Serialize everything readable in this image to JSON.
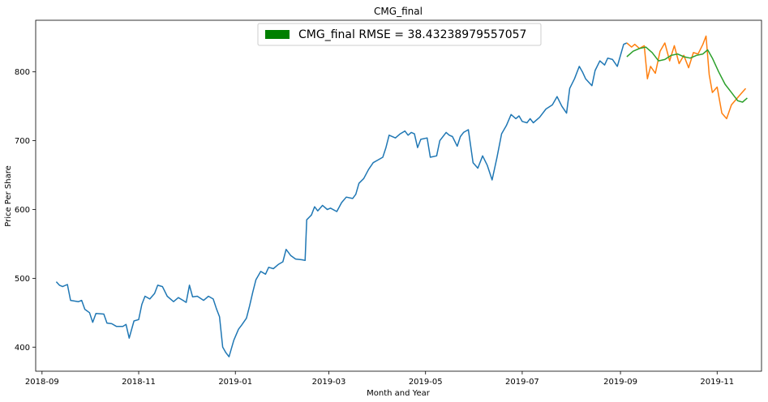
{
  "chart_data": {
    "type": "line",
    "title": "CMG_final",
    "xlabel": "Month and Year",
    "ylabel": "Price Per Share",
    "xlim": [
      "2018-08-28",
      "2019-11-29"
    ],
    "ylim": [
      365,
      875
    ],
    "x_ticks": [
      "2018-09-01",
      "2018-11-01",
      "2019-01-01",
      "2019-03-01",
      "2019-05-01",
      "2019-07-01",
      "2019-09-01",
      "2019-11-01"
    ],
    "x_tick_labels": [
      "2018-09",
      "2018-11",
      "2019-01",
      "2019-03",
      "2019-05",
      "2019-07",
      "2019-09",
      "2019-11"
    ],
    "y_ticks": [
      400,
      500,
      600,
      700,
      800
    ],
    "grid": false,
    "legend": {
      "placement": "top-center",
      "entries": [
        {
          "label": "CMG_final RMSE = 38.43238979557057",
          "color": "#008000"
        }
      ]
    },
    "series": [
      {
        "color": "#1f77b4",
        "points": [
          [
            "2018-09-10",
            495
          ],
          [
            "2018-09-12",
            490
          ],
          [
            "2018-09-14",
            488
          ],
          [
            "2018-09-17",
            491
          ],
          [
            "2018-09-19",
            468
          ],
          [
            "2018-09-24",
            466
          ],
          [
            "2018-09-26",
            468
          ],
          [
            "2018-09-28",
            455
          ],
          [
            "2018-10-01",
            450
          ],
          [
            "2018-10-03",
            436
          ],
          [
            "2018-10-05",
            449
          ],
          [
            "2018-10-10",
            448
          ],
          [
            "2018-10-12",
            435
          ],
          [
            "2018-10-15",
            434
          ],
          [
            "2018-10-18",
            430
          ],
          [
            "2018-10-22",
            430
          ],
          [
            "2018-10-24",
            433
          ],
          [
            "2018-10-26",
            413
          ],
          [
            "2018-10-29",
            438
          ],
          [
            "2018-11-01",
            440
          ],
          [
            "2018-11-03",
            462
          ],
          [
            "2018-11-05",
            474
          ],
          [
            "2018-11-08",
            470
          ],
          [
            "2018-11-11",
            478
          ],
          [
            "2018-11-13",
            490
          ],
          [
            "2018-11-16",
            488
          ],
          [
            "2018-11-19",
            474
          ],
          [
            "2018-11-23",
            466
          ],
          [
            "2018-11-26",
            472
          ],
          [
            "2018-11-29",
            468
          ],
          [
            "2018-12-01",
            465
          ],
          [
            "2018-12-03",
            490
          ],
          [
            "2018-12-05",
            473
          ],
          [
            "2018-12-08",
            474
          ],
          [
            "2018-12-12",
            468
          ],
          [
            "2018-12-15",
            474
          ],
          [
            "2018-12-18",
            470
          ],
          [
            "2018-12-20",
            456
          ],
          [
            "2018-12-22",
            444
          ],
          [
            "2018-12-24",
            400
          ],
          [
            "2018-12-26",
            392
          ],
          [
            "2018-12-28",
            386
          ],
          [
            "2018-12-31",
            410
          ],
          [
            "2019-01-03",
            426
          ],
          [
            "2019-01-05",
            432
          ],
          [
            "2019-01-08",
            442
          ],
          [
            "2019-01-10",
            460
          ],
          [
            "2019-01-12",
            480
          ],
          [
            "2019-01-14",
            498
          ],
          [
            "2019-01-17",
            510
          ],
          [
            "2019-01-20",
            506
          ],
          [
            "2019-01-22",
            516
          ],
          [
            "2019-01-25",
            514
          ],
          [
            "2019-01-28",
            520
          ],
          [
            "2019-01-31",
            524
          ],
          [
            "2019-02-02",
            542
          ],
          [
            "2019-02-05",
            533
          ],
          [
            "2019-02-08",
            528
          ],
          [
            "2019-02-12",
            527
          ],
          [
            "2019-02-14",
            526
          ],
          [
            "2019-02-15",
            585
          ],
          [
            "2019-02-18",
            592
          ],
          [
            "2019-02-20",
            604
          ],
          [
            "2019-02-22",
            598
          ],
          [
            "2019-02-25",
            606
          ],
          [
            "2019-02-28",
            600
          ],
          [
            "2019-03-02",
            602
          ],
          [
            "2019-03-06",
            597
          ],
          [
            "2019-03-09",
            610
          ],
          [
            "2019-03-12",
            618
          ],
          [
            "2019-03-16",
            616
          ],
          [
            "2019-03-18",
            622
          ],
          [
            "2019-03-20",
            638
          ],
          [
            "2019-03-23",
            645
          ],
          [
            "2019-03-26",
            658
          ],
          [
            "2019-03-29",
            668
          ],
          [
            "2019-04-01",
            672
          ],
          [
            "2019-04-04",
            676
          ],
          [
            "2019-04-06",
            690
          ],
          [
            "2019-04-08",
            708
          ],
          [
            "2019-04-12",
            704
          ],
          [
            "2019-04-15",
            710
          ],
          [
            "2019-04-18",
            714
          ],
          [
            "2019-04-20",
            708
          ],
          [
            "2019-04-22",
            712
          ],
          [
            "2019-04-24",
            710
          ],
          [
            "2019-04-26",
            690
          ],
          [
            "2019-04-28",
            702
          ],
          [
            "2019-05-02",
            704
          ],
          [
            "2019-05-04",
            676
          ],
          [
            "2019-05-08",
            678
          ],
          [
            "2019-05-10",
            700
          ],
          [
            "2019-05-14",
            712
          ],
          [
            "2019-05-16",
            708
          ],
          [
            "2019-05-18",
            706
          ],
          [
            "2019-05-21",
            692
          ],
          [
            "2019-05-23",
            706
          ],
          [
            "2019-05-25",
            712
          ],
          [
            "2019-05-28",
            716
          ],
          [
            "2019-05-31",
            668
          ],
          [
            "2019-06-03",
            660
          ],
          [
            "2019-06-06",
            678
          ],
          [
            "2019-06-09",
            664
          ],
          [
            "2019-06-12",
            643
          ],
          [
            "2019-06-15",
            675
          ],
          [
            "2019-06-18",
            710
          ],
          [
            "2019-06-21",
            722
          ],
          [
            "2019-06-24",
            738
          ],
          [
            "2019-06-27",
            732
          ],
          [
            "2019-06-29",
            736
          ],
          [
            "2019-07-01",
            728
          ],
          [
            "2019-07-04",
            726
          ],
          [
            "2019-07-06",
            732
          ],
          [
            "2019-07-08",
            726
          ],
          [
            "2019-07-12",
            734
          ],
          [
            "2019-07-16",
            746
          ],
          [
            "2019-07-20",
            752
          ],
          [
            "2019-07-23",
            764
          ],
          [
            "2019-07-26",
            750
          ],
          [
            "2019-07-29",
            740
          ],
          [
            "2019-07-31",
            776
          ],
          [
            "2019-08-03",
            790
          ],
          [
            "2019-08-06",
            808
          ],
          [
            "2019-08-08",
            800
          ],
          [
            "2019-08-10",
            790
          ],
          [
            "2019-08-14",
            780
          ],
          [
            "2019-08-16",
            802
          ],
          [
            "2019-08-19",
            816
          ],
          [
            "2019-08-22",
            810
          ],
          [
            "2019-08-24",
            820
          ],
          [
            "2019-08-27",
            818
          ],
          [
            "2019-08-30",
            808
          ],
          [
            "2019-09-03",
            840
          ],
          [
            "2019-09-05",
            842
          ]
        ]
      },
      {
        "color": "#ff7f0e",
        "points": [
          [
            "2019-09-05",
            842
          ],
          [
            "2019-09-08",
            836
          ],
          [
            "2019-09-10",
            840
          ],
          [
            "2019-09-13",
            834
          ],
          [
            "2019-09-16",
            838
          ],
          [
            "2019-09-18",
            790
          ],
          [
            "2019-09-20",
            808
          ],
          [
            "2019-09-23",
            798
          ],
          [
            "2019-09-26",
            830
          ],
          [
            "2019-09-29",
            842
          ],
          [
            "2019-10-02",
            816
          ],
          [
            "2019-10-05",
            838
          ],
          [
            "2019-10-08",
            812
          ],
          [
            "2019-10-11",
            824
          ],
          [
            "2019-10-14",
            806
          ],
          [
            "2019-10-17",
            828
          ],
          [
            "2019-10-20",
            826
          ],
          [
            "2019-10-23",
            840
          ],
          [
            "2019-10-25",
            852
          ],
          [
            "2019-10-27",
            796
          ],
          [
            "2019-10-29",
            770
          ],
          [
            "2019-11-01",
            778
          ],
          [
            "2019-11-04",
            740
          ],
          [
            "2019-11-07",
            732
          ],
          [
            "2019-11-10",
            752
          ],
          [
            "2019-11-13",
            760
          ],
          [
            "2019-11-16",
            768
          ],
          [
            "2019-11-19",
            776
          ]
        ]
      },
      {
        "color": "#2ca02c",
        "points": [
          [
            "2019-09-05",
            822
          ],
          [
            "2019-09-09",
            830
          ],
          [
            "2019-09-13",
            834
          ],
          [
            "2019-09-17",
            836
          ],
          [
            "2019-09-21",
            828
          ],
          [
            "2019-09-25",
            816
          ],
          [
            "2019-09-29",
            818
          ],
          [
            "2019-10-03",
            824
          ],
          [
            "2019-10-07",
            826
          ],
          [
            "2019-10-11",
            822
          ],
          [
            "2019-10-15",
            820
          ],
          [
            "2019-10-19",
            824
          ],
          [
            "2019-10-23",
            826
          ],
          [
            "2019-10-26",
            832
          ],
          [
            "2019-10-29",
            820
          ],
          [
            "2019-11-02",
            800
          ],
          [
            "2019-11-06",
            782
          ],
          [
            "2019-11-10",
            770
          ],
          [
            "2019-11-14",
            758
          ],
          [
            "2019-11-17",
            756
          ],
          [
            "2019-11-20",
            762
          ]
        ]
      }
    ]
  }
}
